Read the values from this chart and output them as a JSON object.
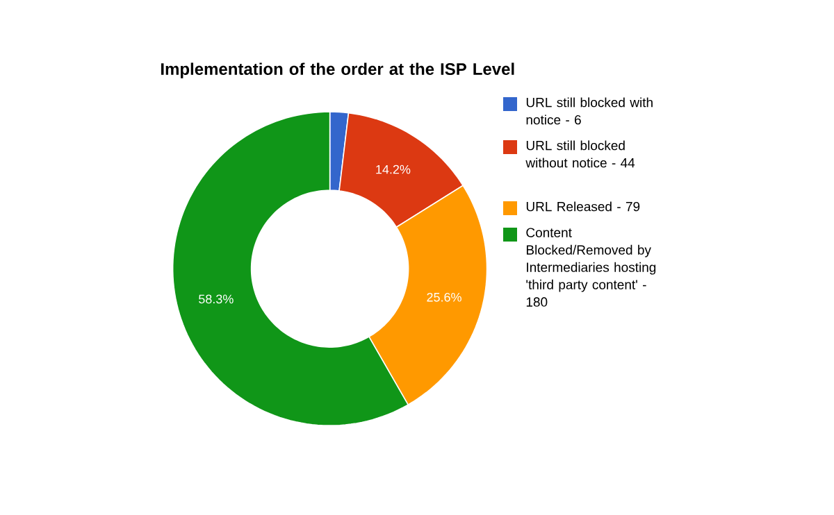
{
  "chart_data": {
    "type": "donut",
    "title": "Implementation of the order at the ISP Level",
    "categories": [
      "URL still blocked with notice - 6",
      "URL still blocked without notice - 44",
      "URL Released - 79",
      "Content Blocked/Removed by Intermediaries hosting 'third party content' - 180"
    ],
    "values": [
      1.9,
      14.2,
      25.6,
      58.3
    ],
    "colors": [
      "#3366cc",
      "#dc3912",
      "#ff9900",
      "#109618"
    ],
    "value_labels": [
      null,
      "14.2%",
      "25.6%",
      "58.3%"
    ],
    "legend": "right"
  }
}
